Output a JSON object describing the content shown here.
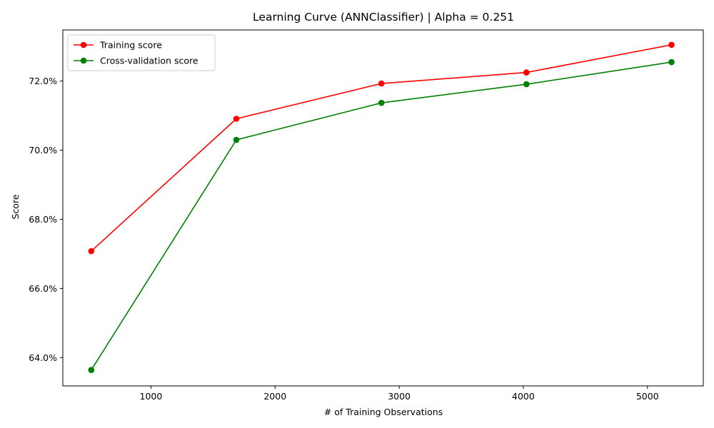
{
  "chart_data": {
    "type": "line",
    "title": "Learning Curve (ANNClassifier) | Alpha = 0.251",
    "xlabel": "# of Training Observations",
    "ylabel": "Score",
    "xlim": [
      290,
      5450
    ],
    "ylim": [
      0.6318,
      0.7348
    ],
    "x_ticks": [
      1000,
      2000,
      3000,
      4000,
      5000
    ],
    "x_tick_labels": [
      "1000",
      "2000",
      "3000",
      "4000",
      "5000"
    ],
    "y_ticks": [
      0.64,
      0.66,
      0.68,
      0.7,
      0.72
    ],
    "y_tick_labels": [
      "64.0%",
      "66.0%",
      "68.0%",
      "70.0%",
      "72.0%"
    ],
    "grid": false,
    "legend_position": "top-left",
    "x": [
      519,
      1688,
      2857,
      4025,
      5194
    ],
    "series": [
      {
        "name": "Training score",
        "color": "#ff0000",
        "marker": "circle",
        "values": [
          0.6708,
          0.7091,
          0.7193,
          0.7225,
          0.7305
        ]
      },
      {
        "name": "Cross-validation score",
        "color": "#008000",
        "marker": "circle",
        "values": [
          0.6364,
          0.703,
          0.7137,
          0.7191,
          0.7255
        ]
      }
    ]
  }
}
